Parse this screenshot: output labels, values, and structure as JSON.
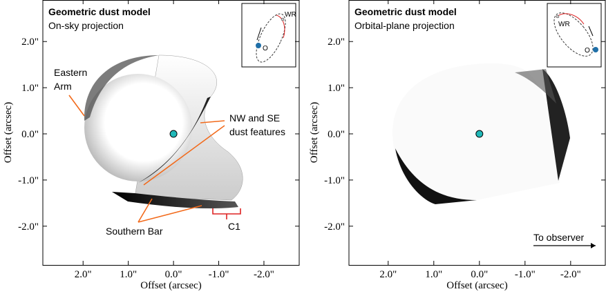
{
  "chart_data": [
    {
      "type": "image",
      "title": "Geometric dust model",
      "subtitle": "On-sky projection",
      "x_label": "Offset (arcsec)",
      "y_label": "Offset (arcsec)",
      "xlim": [
        2.89,
        -2.78
      ],
      "ylim": [
        -2.84,
        2.9
      ],
      "xticks": [
        {
          "value": 2,
          "label": "2.0\""
        },
        {
          "value": 1,
          "label": "1.0\""
        },
        {
          "value": 0,
          "label": "0.0\""
        },
        {
          "value": -1,
          "label": "-1.0\""
        },
        {
          "value": -2,
          "label": "-2.0\""
        }
      ],
      "yticks": [
        {
          "value": -2,
          "label": "-2.0\""
        },
        {
          "value": -1,
          "label": "-1.0\""
        },
        {
          "value": 0,
          "label": "0.0\""
        },
        {
          "value": 1,
          "label": "1.0\""
        },
        {
          "value": 2,
          "label": "2.0\""
        }
      ],
      "star": {
        "x": 0,
        "y": 0
      },
      "annotations": [
        [
          "Eastern",
          "Arm"
        ],
        [
          "NW and SE",
          "dust features"
        ],
        [
          "Southern Bar"
        ],
        [
          "C1"
        ]
      ],
      "inset_labels": [
        "WR",
        "O"
      ]
    },
    {
      "type": "image",
      "title": "Geometric dust model",
      "subtitle": "Orbital-plane projection",
      "x_label": "Offset (arcsec)",
      "y_label": "Offset (arcsec)",
      "xlim": [
        2.86,
        -2.76
      ],
      "ylim": [
        -2.84,
        2.9
      ],
      "xticks": [
        {
          "value": 2,
          "label": "2.0\""
        },
        {
          "value": 1,
          "label": "1.0\""
        },
        {
          "value": 0,
          "label": "0.0\""
        },
        {
          "value": -1,
          "label": "-1.0\""
        },
        {
          "value": -2,
          "label": "-2.0\""
        }
      ],
      "yticks": [
        {
          "value": -2,
          "label": "-2.0\""
        },
        {
          "value": -1,
          "label": "-1.0\""
        },
        {
          "value": 0,
          "label": "0.0\""
        },
        {
          "value": 1,
          "label": "1.0\""
        },
        {
          "value": 2,
          "label": "2.0\""
        }
      ],
      "star": {
        "x": 0,
        "y": 0
      },
      "annotations": [
        [
          "To observer"
        ]
      ],
      "inset_labels": [
        "WR",
        "O"
      ]
    }
  ]
}
